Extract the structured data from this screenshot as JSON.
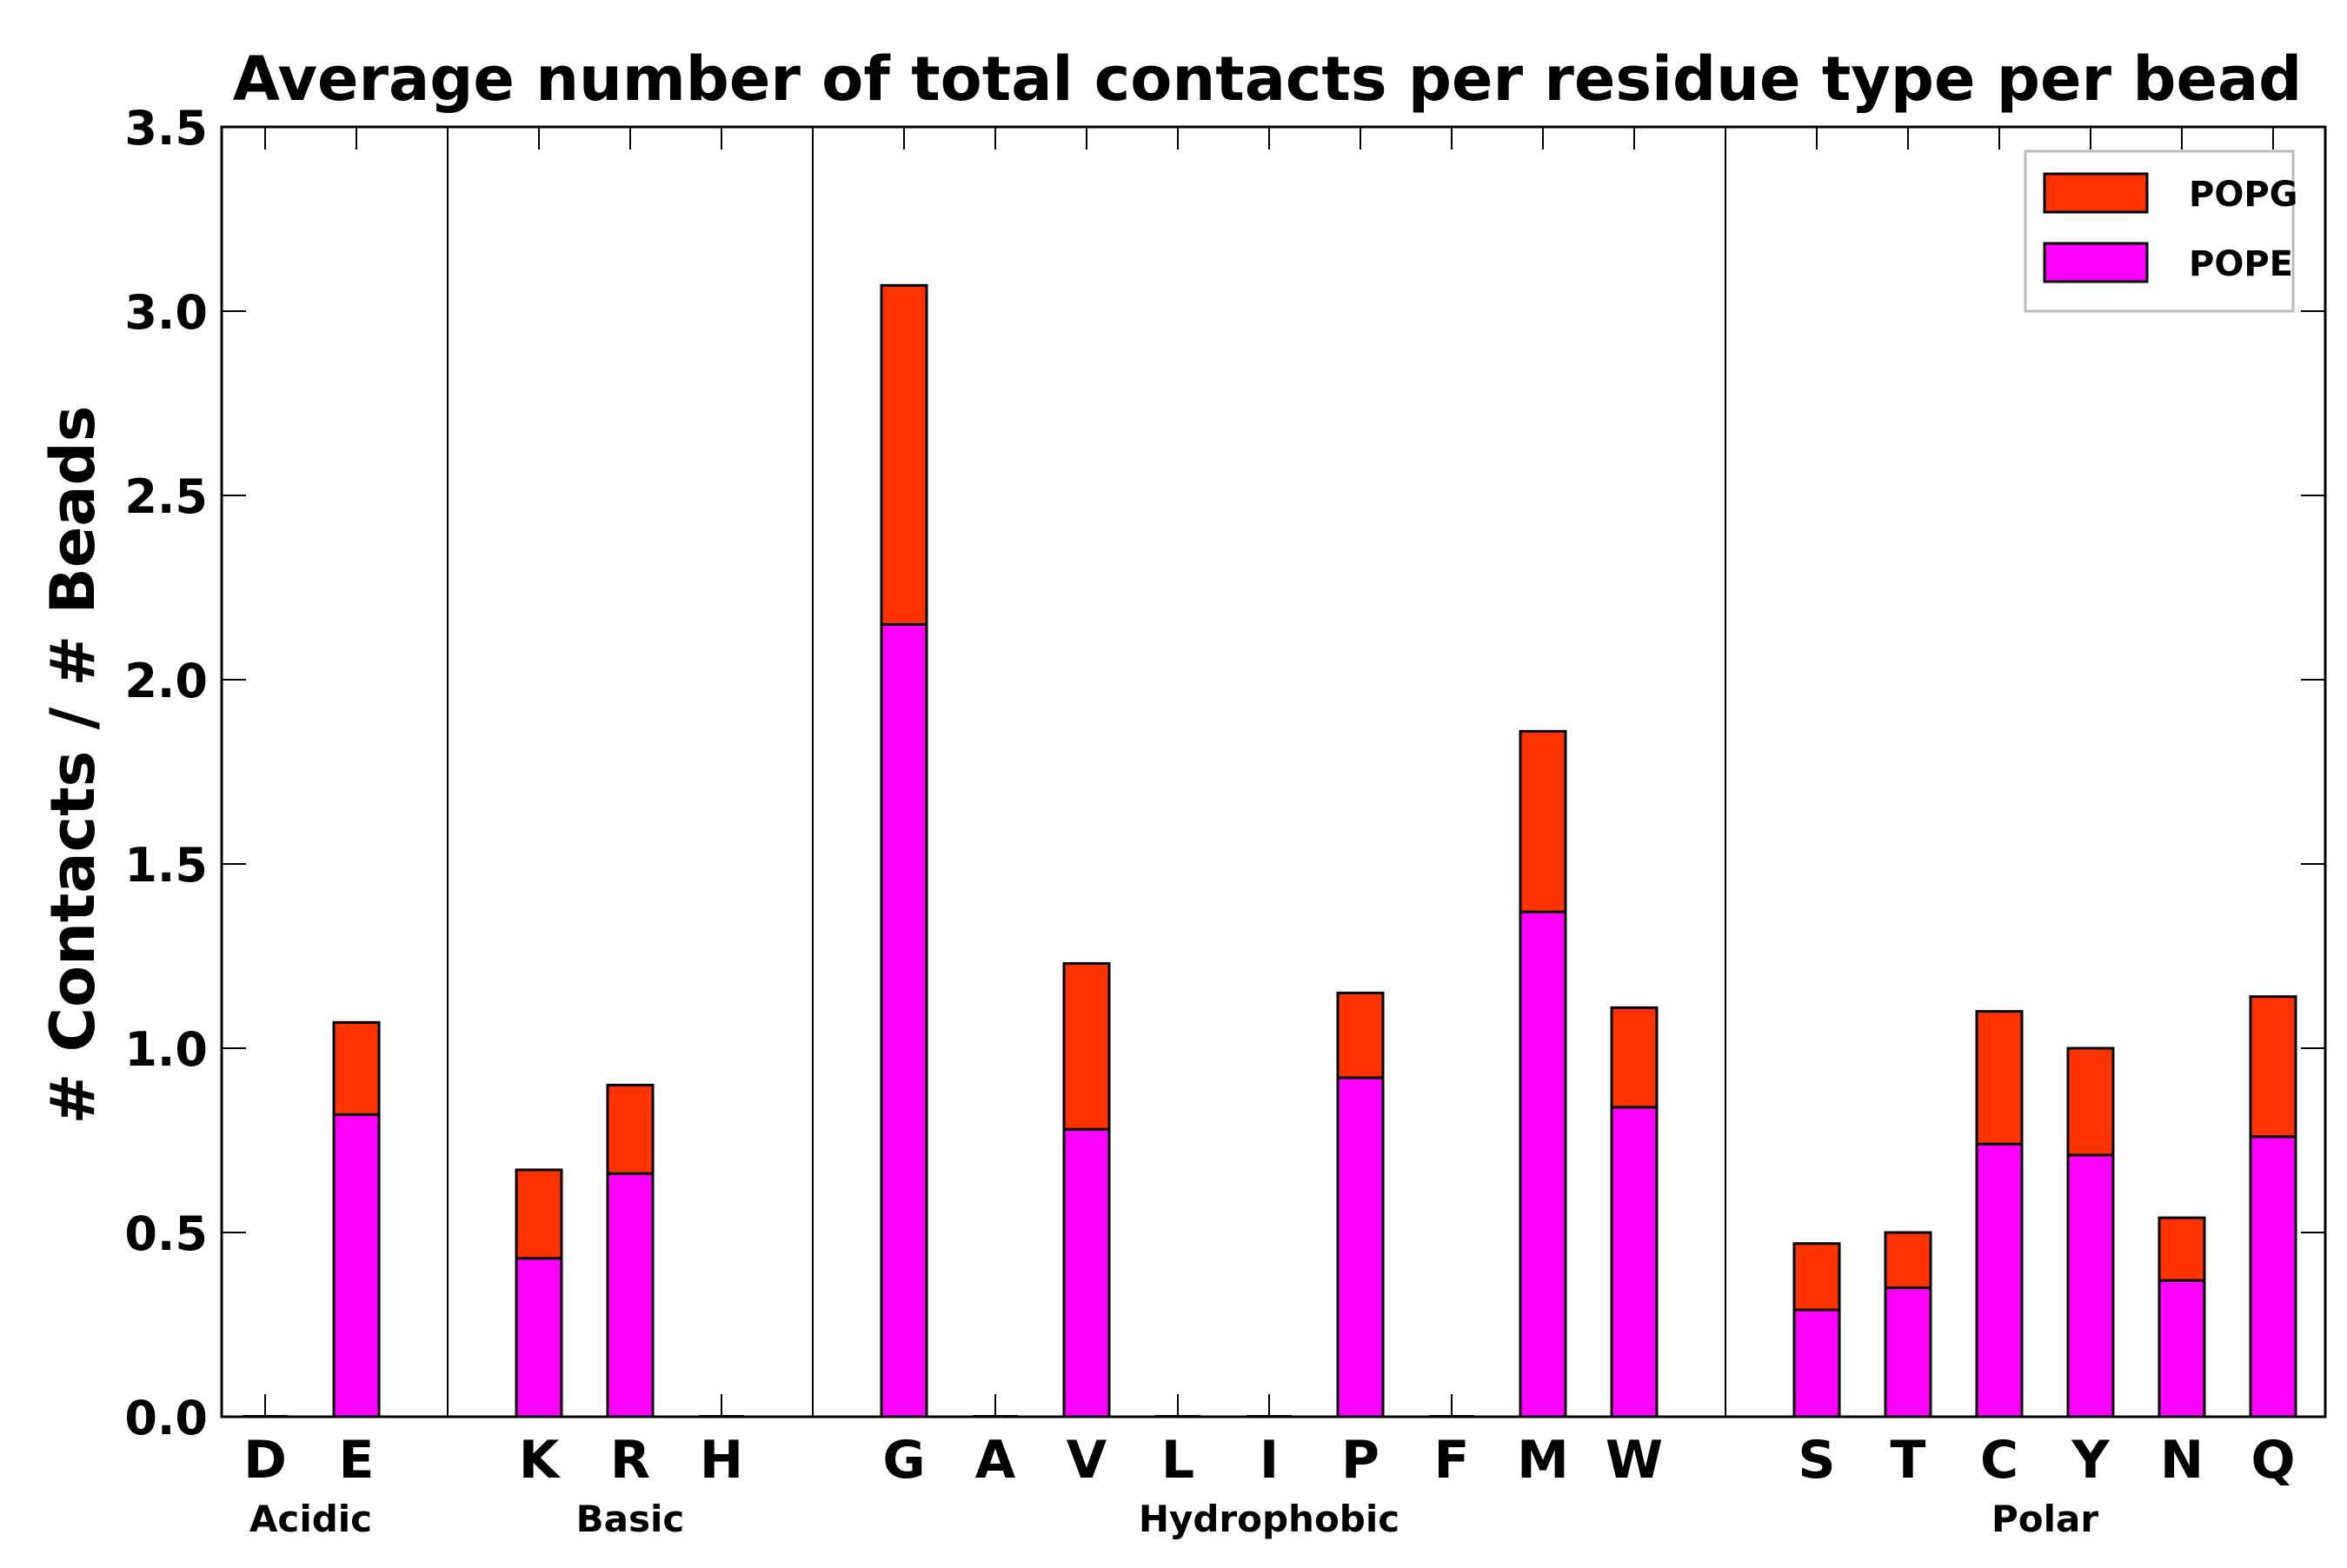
{
  "chart_data": {
    "type": "bar",
    "stacked": true,
    "title": "Average number of total contacts per residue type per bead",
    "xlabel": "",
    "ylabel": "# Contacts / # Beads",
    "ylim": [
      0,
      3.5
    ],
    "yticks": [
      "0.0",
      "0.5",
      "1.0",
      "1.5",
      "2.0",
      "2.5",
      "3.0",
      "3.5"
    ],
    "ytick_values": [
      0,
      0.5,
      1.0,
      1.5,
      2.0,
      2.5,
      3.0,
      3.5
    ],
    "grid": false,
    "legend_position": "top-right",
    "colors": {
      "POPG": "#ff3300",
      "POPE": "#ff00ff"
    },
    "groups": [
      {
        "name": "Acidic",
        "residues": [
          "D",
          "E"
        ]
      },
      {
        "name": "Basic",
        "residues": [
          "K",
          "R",
          "H"
        ]
      },
      {
        "name": "Hydrophobic",
        "residues": [
          "G",
          "A",
          "V",
          "L",
          "I",
          "P",
          "F",
          "M",
          "W"
        ]
      },
      {
        "name": "Polar",
        "residues": [
          "S",
          "T",
          "C",
          "Y",
          "N",
          "Q"
        ]
      }
    ],
    "series": [
      {
        "name": "POPE",
        "values": {
          "D": 0,
          "E": 0.82,
          "K": 0.43,
          "R": 0.66,
          "H": 0,
          "G": 2.15,
          "A": 0,
          "V": 0.78,
          "L": 0,
          "I": 0,
          "P": 0.92,
          "F": 0,
          "M": 1.37,
          "W": 0.84,
          "S": 0.29,
          "T": 0.35,
          "C": 0.74,
          "Y": 0.71,
          "N": 0.37,
          "Q": 0.76
        }
      },
      {
        "name": "POPG",
        "values": {
          "D": 0,
          "E": 0.25,
          "K": 0.24,
          "R": 0.24,
          "H": 0,
          "G": 0.92,
          "A": 0,
          "V": 0.45,
          "L": 0,
          "I": 0,
          "P": 0.23,
          "F": 0,
          "M": 0.49,
          "W": 0.27,
          "S": 0.18,
          "T": 0.15,
          "C": 0.36,
          "Y": 0.29,
          "N": 0.17,
          "Q": 0.38
        }
      }
    ],
    "legend": [
      "POPG",
      "POPE"
    ]
  }
}
